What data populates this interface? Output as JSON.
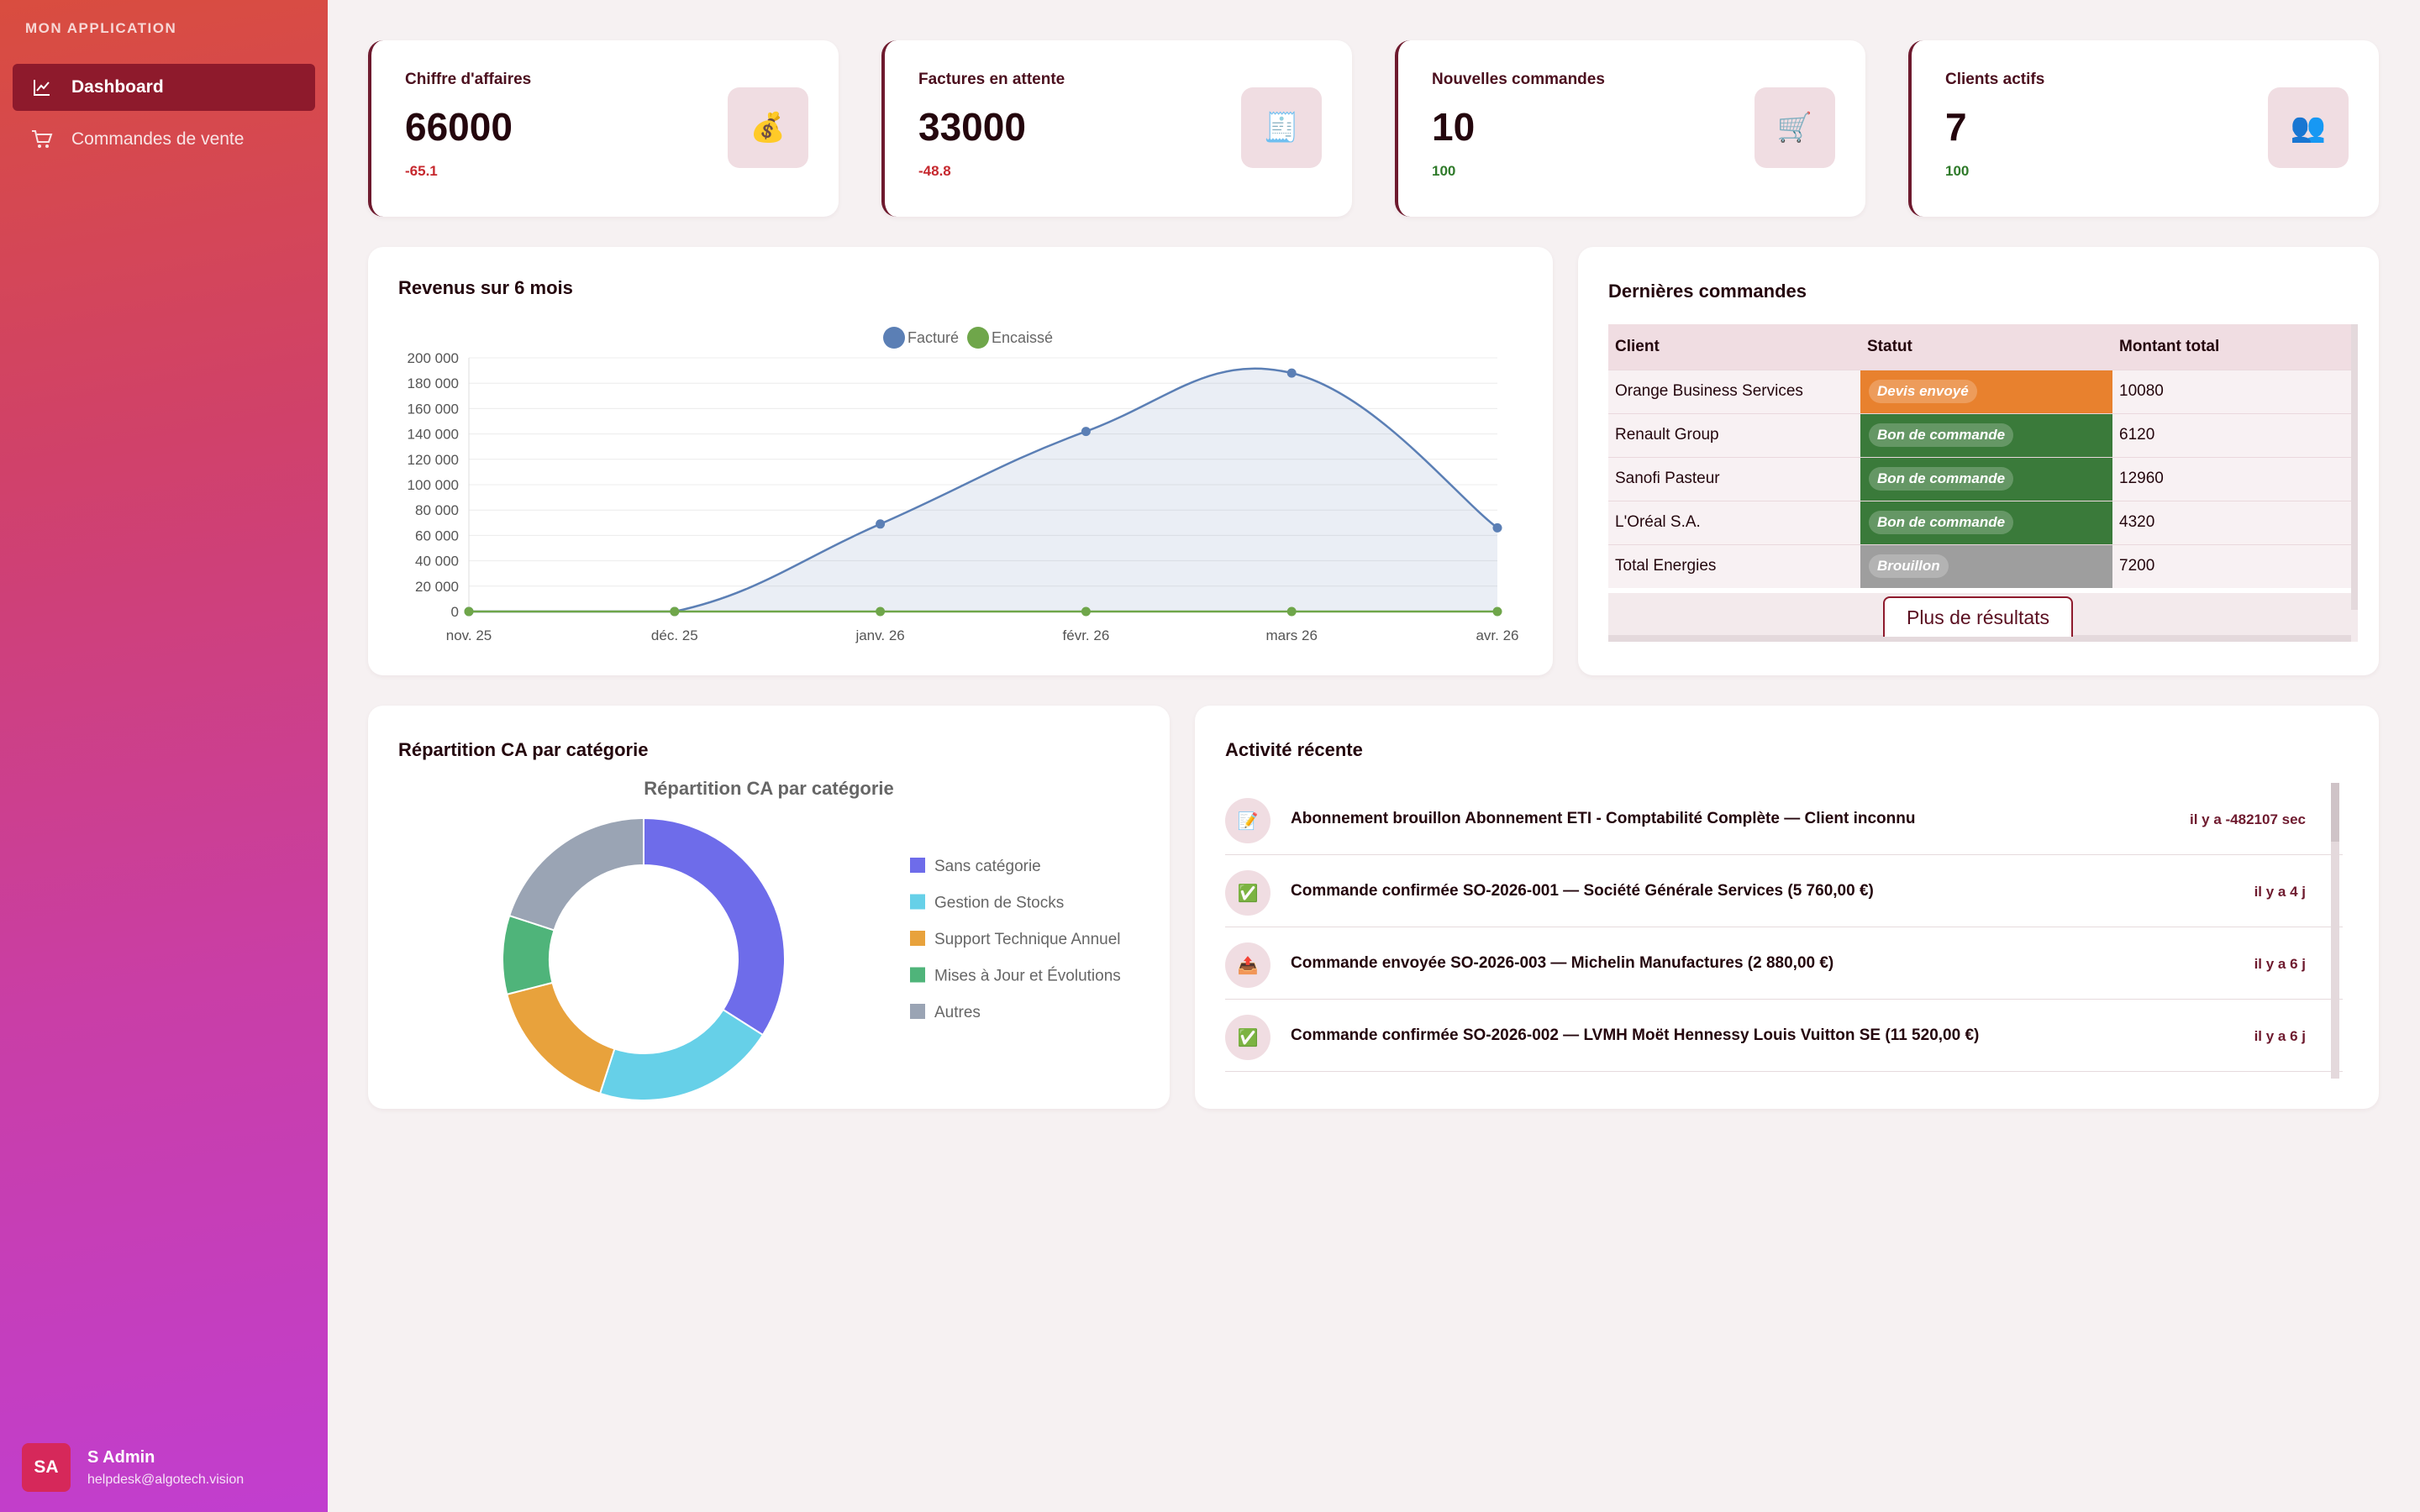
{
  "sidebar": {
    "app_title": "MON APPLICATION",
    "items": [
      {
        "label": "Dashboard",
        "icon": "line-chart-icon",
        "active": true
      },
      {
        "label": "Commandes de vente",
        "icon": "cart-icon",
        "active": false
      }
    ],
    "user": {
      "initials": "SA",
      "name": "S Admin",
      "email": "helpdesk@algotech.vision"
    }
  },
  "kpis": [
    {
      "title": "Chiffre d'affaires",
      "value": "66000",
      "delta": "-65.1",
      "icon": "money-bag-icon",
      "glyph": "💰"
    },
    {
      "title": "Factures en attente",
      "value": "33000",
      "delta": "-48.8",
      "icon": "receipt-icon",
      "glyph": "🧾"
    },
    {
      "title": "Nouvelles commandes",
      "value": "10",
      "delta": "100",
      "icon": "cart-icon",
      "glyph": "🛒"
    },
    {
      "title": "Clients actifs",
      "value": "7",
      "delta": "100",
      "icon": "users-icon",
      "glyph": "👥"
    }
  ],
  "revenue_card": {
    "title": "Revenus sur 6 mois"
  },
  "chart_data": [
    {
      "type": "area",
      "title": "",
      "x": [
        "nov. 25",
        "déc. 25",
        "janv. 26",
        "févr. 26",
        "mars 26",
        "avr. 26"
      ],
      "series": [
        {
          "name": "Facturé",
          "values": [
            0,
            0,
            69000,
            142000,
            188000,
            66000
          ],
          "color": "#5b7fb5"
        },
        {
          "name": "Encaissé",
          "values": [
            0,
            0,
            0,
            0,
            0,
            0
          ],
          "color": "#6fa64a"
        }
      ],
      "yticks": [
        "0",
        "20 000",
        "40 000",
        "60 000",
        "80 000",
        "100 000",
        "120 000",
        "140 000",
        "160 000",
        "180 000",
        "200 000"
      ],
      "ylim": [
        0,
        200000
      ],
      "legend": "top-center",
      "grid": true
    },
    {
      "type": "pie",
      "title": "Répartition CA par catégorie",
      "categories": [
        "Sans catégorie",
        "Gestion de Stocks",
        "Support Technique Annuel",
        "Mises à Jour et Évolutions",
        "Autres"
      ],
      "values": [
        34,
        21,
        16,
        9,
        20
      ],
      "colors": [
        "#6e6cea",
        "#66d0e8",
        "#e8a23c",
        "#4fb47a",
        "#9aa4b4"
      ],
      "legend": "right"
    }
  ],
  "orders": {
    "title": "Dernières commandes",
    "columns": [
      "Client",
      "Statut",
      "Montant total"
    ],
    "rows": [
      {
        "client": "Orange Business Services",
        "status": "Devis envoyé",
        "status_color": "#e8812e",
        "amount": "10080"
      },
      {
        "client": "Renault Group",
        "status": "Bon de commande",
        "status_color": "#3a7a3a",
        "amount": "6120"
      },
      {
        "client": "Sanofi Pasteur",
        "status": "Bon de commande",
        "status_color": "#3a7a3a",
        "amount": "12960"
      },
      {
        "client": "L'Oréal S.A.",
        "status": "Bon de commande",
        "status_color": "#3a7a3a",
        "amount": "4320"
      },
      {
        "client": "Total Energies",
        "status": "Brouillon",
        "status_color": "#9e9e9e",
        "amount": "7200"
      }
    ],
    "more_label": "Plus de résultats"
  },
  "pie_card": {
    "title": "Répartition CA par catégorie"
  },
  "activity": {
    "title": "Activité récente",
    "items": [
      {
        "text": "Abonnement brouillon Abonnement ETI - Comptabilité Complète — Client inconnu",
        "time": "il y a -482107 sec",
        "icon": "draft-icon",
        "glyph": "📝"
      },
      {
        "text": "Commande confirmée SO-2026-001 — Société Générale Services (5 760,00 €)",
        "time": "il y a 4 j",
        "icon": "check-icon",
        "glyph": "✅"
      },
      {
        "text": "Commande envoyée SO-2026-003 — Michelin Manufactures (2 880,00 €)",
        "time": "il y a 6 j",
        "icon": "send-icon",
        "glyph": "📤"
      },
      {
        "text": "Commande confirmée SO-2026-002 — LVMH Moët Hennessy Louis Vuitton SE (11 520,00 €)",
        "time": "il y a 6 j",
        "icon": "check-icon",
        "glyph": "✅"
      }
    ]
  }
}
